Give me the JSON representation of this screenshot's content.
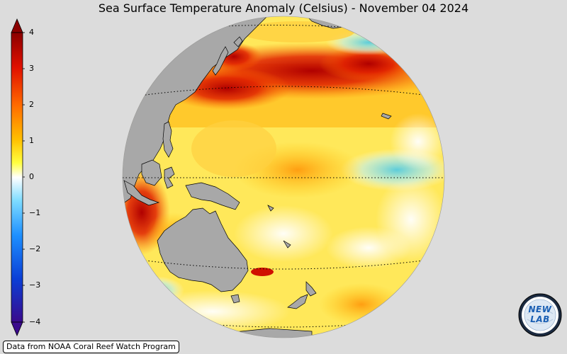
{
  "title": "Sea Surface Temperature Anomaly (Celsius) - November 04 2024",
  "colorbar": {
    "ticks": [
      "4",
      "3",
      "2",
      "1",
      "0",
      "−1",
      "−2",
      "−3",
      "−4"
    ],
    "stops": [
      "#3a0a8c",
      "#0b3fd6",
      "#1e90ff",
      "#7fdcff",
      "#ffffff",
      "#ffff40",
      "#ffc000",
      "#ff7000",
      "#e01000",
      "#8b0000"
    ]
  },
  "credit": "Data from NOAA Coral Reef Watch Program",
  "logo": {
    "text": "NEW LAB"
  },
  "colors": {
    "land": "#a8a8a8",
    "background": "#dcdcdc"
  }
}
